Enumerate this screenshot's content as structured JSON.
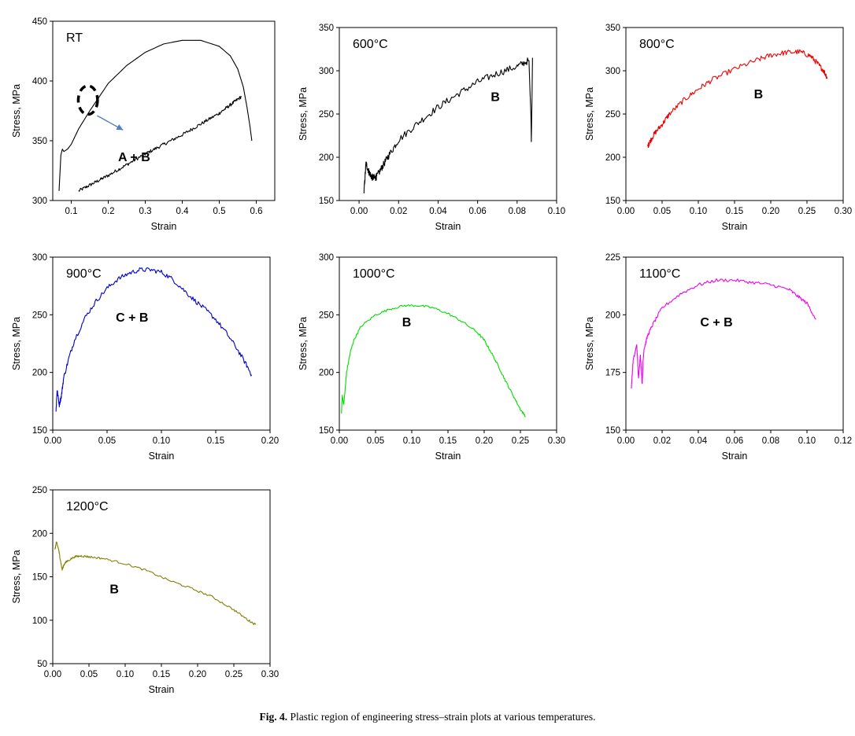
{
  "caption": {
    "label": "Fig. 4.",
    "text": "Plastic region of engineering stress–strain plots at various temperatures."
  },
  "chart_data": [
    {
      "id": "rt",
      "type": "line",
      "title": "RT",
      "xlabel": "Strain",
      "ylabel": "Stress, MPa",
      "xlim": [
        0.05,
        0.65
      ],
      "ylim": [
        300,
        450
      ],
      "xticks": [
        0.1,
        0.2,
        0.3,
        0.4,
        0.5,
        0.6
      ],
      "xtick_labels": [
        "0.1",
        "0.2",
        "0.3",
        "0.4",
        "0.5",
        "0.6"
      ],
      "yticks": [
        300,
        350,
        400,
        450
      ],
      "ytick_labels": [
        "300",
        "350",
        "400",
        "450"
      ],
      "annotations": [
        {
          "text": "A + B",
          "x": 0.27,
          "y": 333
        }
      ],
      "circle": {
        "x": 0.145,
        "y": 384,
        "rx": 0.026,
        "ry": 12
      },
      "arrow": {
        "from": [
          0.17,
          371
        ],
        "to": [
          0.24,
          359
        ]
      },
      "series": [
        {
          "color": "#000000",
          "noise": 0,
          "points": [
            [
              0.067,
              308
            ],
            [
              0.072,
              338
            ],
            [
              0.076,
              343
            ],
            [
              0.08,
              341
            ],
            [
              0.09,
              343
            ],
            [
              0.1,
              347
            ],
            [
              0.12,
              360
            ],
            [
              0.15,
              375
            ],
            [
              0.2,
              398
            ],
            [
              0.25,
              413
            ],
            [
              0.3,
              424
            ],
            [
              0.35,
              431
            ],
            [
              0.4,
              434
            ],
            [
              0.45,
              434
            ],
            [
              0.5,
              429
            ],
            [
              0.53,
              421
            ],
            [
              0.55,
              410
            ],
            [
              0.565,
              395
            ],
            [
              0.575,
              378
            ],
            [
              0.583,
              362
            ],
            [
              0.588,
              350
            ]
          ]
        },
        {
          "color": "#000000",
          "noise": 1.4,
          "points": [
            [
              0.12,
              308
            ],
            [
              0.2,
              321
            ],
            [
              0.3,
              339
            ],
            [
              0.4,
              355
            ],
            [
              0.5,
              373
            ],
            [
              0.56,
              387
            ]
          ]
        }
      ]
    },
    {
      "id": "t600",
      "type": "line",
      "title": "600°C",
      "xlabel": "Strain",
      "ylabel": "Stress, MPa",
      "xlim": [
        -0.01,
        0.1
      ],
      "ylim": [
        150,
        350
      ],
      "xticks": [
        0,
        0.02,
        0.04,
        0.06,
        0.08,
        0.1
      ],
      "xtick_labels": [
        "0.00",
        "0.02",
        "0.04",
        "0.06",
        "0.08",
        "0.10"
      ],
      "yticks": [
        150,
        200,
        250,
        300,
        350
      ],
      "ytick_labels": [
        "150",
        "200",
        "250",
        "300",
        "350"
      ],
      "annotations": [
        {
          "text": "B",
          "x": 0.069,
          "y": 265
        }
      ],
      "series": [
        {
          "color": "#000000",
          "noise": 4,
          "points": [
            [
              0.0025,
              160
            ],
            [
              0.0035,
              193
            ],
            [
              0.005,
              183
            ],
            [
              0.0065,
              177
            ],
            [
              0.008,
              176
            ],
            [
              0.009,
              178
            ],
            [
              0.012,
              190
            ],
            [
              0.015,
              202
            ],
            [
              0.02,
              220
            ],
            [
              0.03,
              240
            ],
            [
              0.04,
              258
            ],
            [
              0.05,
              273
            ],
            [
              0.06,
              287
            ],
            [
              0.07,
              297
            ],
            [
              0.08,
              305
            ],
            [
              0.086,
              312
            ]
          ]
        },
        {
          "color": "#000000",
          "noise": 0,
          "points": [
            [
              0.086,
              312
            ],
            [
              0.0865,
              278
            ],
            [
              0.087,
              248
            ],
            [
              0.0872,
              218
            ],
            [
              0.0875,
              262
            ],
            [
              0.0878,
              315
            ]
          ]
        }
      ]
    },
    {
      "id": "t800",
      "type": "line",
      "title": "800°C",
      "xlabel": "Strain",
      "ylabel": "Stress, MPa",
      "xlim": [
        0,
        0.3
      ],
      "ylim": [
        150,
        350
      ],
      "xticks": [
        0,
        0.05,
        0.1,
        0.15,
        0.2,
        0.25,
        0.3
      ],
      "xtick_labels": [
        "0.00",
        "0.05",
        "0.10",
        "0.15",
        "0.20",
        "0.25",
        "0.30"
      ],
      "yticks": [
        150,
        200,
        250,
        300,
        350
      ],
      "ytick_labels": [
        "150",
        "200",
        "250",
        "300",
        "350"
      ],
      "annotations": [
        {
          "text": "B",
          "x": 0.183,
          "y": 268
        }
      ],
      "series": [
        {
          "color": "#ee0000",
          "noise": 3,
          "points": [
            [
              0.03,
              212
            ],
            [
              0.033,
              218
            ],
            [
              0.04,
              228
            ],
            [
              0.05,
              238
            ],
            [
              0.06,
              250
            ],
            [
              0.08,
              266
            ],
            [
              0.1,
              279
            ],
            [
              0.12,
              290
            ],
            [
              0.15,
              302
            ],
            [
              0.18,
              312
            ],
            [
              0.2,
              318
            ],
            [
              0.22,
              321
            ],
            [
              0.24,
              322
            ],
            [
              0.255,
              317
            ],
            [
              0.265,
              308
            ],
            [
              0.273,
              300
            ],
            [
              0.278,
              292
            ]
          ]
        }
      ]
    },
    {
      "id": "t900",
      "type": "line",
      "title": "900°C",
      "xlabel": "Strain",
      "ylabel": "Stress, MPa",
      "xlim": [
        0,
        0.2
      ],
      "ylim": [
        150,
        300
      ],
      "xticks": [
        0,
        0.05,
        0.1,
        0.15,
        0.2
      ],
      "xtick_labels": [
        "0.00",
        "0.05",
        "0.10",
        "0.15",
        "0.20"
      ],
      "yticks": [
        150,
        200,
        250,
        300
      ],
      "ytick_labels": [
        "150",
        "200",
        "250",
        "300"
      ],
      "annotations": [
        {
          "text": "C + B",
          "x": 0.073,
          "y": 244
        }
      ],
      "series": [
        {
          "color": "#0000cc",
          "noise": 2,
          "points": [
            [
              0.003,
              166
            ],
            [
              0.004,
              185
            ],
            [
              0.006,
              172
            ],
            [
              0.008,
              180
            ],
            [
              0.01,
              195
            ],
            [
              0.015,
              213
            ],
            [
              0.02,
              228
            ],
            [
              0.03,
              248
            ],
            [
              0.04,
              262
            ],
            [
              0.05,
              273
            ],
            [
              0.06,
              281
            ],
            [
              0.07,
              286
            ],
            [
              0.08,
              289
            ],
            [
              0.09,
              289
            ],
            [
              0.1,
              287
            ],
            [
              0.11,
              281
            ],
            [
              0.12,
              272
            ],
            [
              0.13,
              263
            ],
            [
              0.14,
              255
            ],
            [
              0.15,
              246
            ],
            [
              0.16,
              234
            ],
            [
              0.17,
              220
            ],
            [
              0.178,
              207
            ],
            [
              0.183,
              198
            ]
          ]
        }
      ]
    },
    {
      "id": "t1000",
      "type": "line",
      "title": "1000°C",
      "xlabel": "Strain",
      "ylabel": "Stress, MPa",
      "xlim": [
        0,
        0.3
      ],
      "ylim": [
        150,
        300
      ],
      "xticks": [
        0,
        0.05,
        0.1,
        0.15,
        0.2,
        0.25,
        0.3
      ],
      "xtick_labels": [
        "0.00",
        "0.05",
        "0.10",
        "0.15",
        "0.20",
        "0.25",
        "0.30"
      ],
      "yticks": [
        150,
        200,
        250,
        300
      ],
      "ytick_labels": [
        "150",
        "200",
        "250",
        "300"
      ],
      "annotations": [
        {
          "text": "B",
          "x": 0.093,
          "y": 240
        }
      ],
      "series": [
        {
          "color": "#00dd00",
          "noise": 1,
          "points": [
            [
              0.003,
              165
            ],
            [
              0.004,
              180
            ],
            [
              0.006,
              172
            ],
            [
              0.008,
              185
            ],
            [
              0.01,
              200
            ],
            [
              0.015,
              217
            ],
            [
              0.02,
              228
            ],
            [
              0.03,
              240
            ],
            [
              0.05,
              250
            ],
            [
              0.07,
              255
            ],
            [
              0.09,
              258
            ],
            [
              0.11,
              258
            ],
            [
              0.13,
              256
            ],
            [
              0.15,
              251
            ],
            [
              0.17,
              244
            ],
            [
              0.19,
              235
            ],
            [
              0.2,
              228
            ],
            [
              0.21,
              217
            ],
            [
              0.22,
              205
            ],
            [
              0.23,
              192
            ],
            [
              0.24,
              180
            ],
            [
              0.25,
              168
            ],
            [
              0.257,
              162
            ]
          ]
        }
      ]
    },
    {
      "id": "t1100",
      "type": "line",
      "title": "1100°C",
      "xlabel": "Strain",
      "ylabel": "Stress, MPa",
      "xlim": [
        0,
        0.12
      ],
      "ylim": [
        150,
        225
      ],
      "xticks": [
        0,
        0.02,
        0.04,
        0.06,
        0.08,
        0.1,
        0.12
      ],
      "xtick_labels": [
        "0.00",
        "0.02",
        "0.04",
        "0.06",
        "0.08",
        "0.10",
        "0.12"
      ],
      "yticks": [
        150,
        175,
        200,
        225
      ],
      "ytick_labels": [
        "150",
        "175",
        "200",
        "225"
      ],
      "annotations": [
        {
          "text": "C + B",
          "x": 0.05,
          "y": 195
        }
      ],
      "series": [
        {
          "color": "#ee00ee",
          "noise": 0.7,
          "points": [
            [
              0.003,
              168
            ],
            [
              0.004,
              180
            ],
            [
              0.006,
              187
            ],
            [
              0.007,
              172
            ],
            [
              0.008,
              183
            ],
            [
              0.009,
              170
            ],
            [
              0.0095,
              180
            ],
            [
              0.01,
              185
            ],
            [
              0.012,
              191
            ],
            [
              0.015,
              196
            ],
            [
              0.02,
              203
            ],
            [
              0.03,
              209
            ],
            [
              0.04,
              213
            ],
            [
              0.05,
              215
            ],
            [
              0.06,
              215
            ],
            [
              0.07,
              214
            ],
            [
              0.08,
              213
            ],
            [
              0.09,
              211
            ],
            [
              0.095,
              208
            ],
            [
              0.1,
              205
            ],
            [
              0.105,
              198
            ]
          ]
        }
      ]
    },
    {
      "id": "t1200",
      "type": "line",
      "title": "1200°C",
      "xlabel": "Strain",
      "ylabel": "Stress, MPa",
      "xlim": [
        0,
        0.3
      ],
      "ylim": [
        50,
        250
      ],
      "xticks": [
        0,
        0.05,
        0.1,
        0.15,
        0.2,
        0.25,
        0.3
      ],
      "xtick_labels": [
        "0.00",
        "0.05",
        "0.10",
        "0.15",
        "0.20",
        "0.25",
        "0.30"
      ],
      "yticks": [
        50,
        100,
        150,
        200,
        250
      ],
      "ytick_labels": [
        "50",
        "100",
        "150",
        "200",
        "250"
      ],
      "annotations": [
        {
          "text": "B",
          "x": 0.085,
          "y": 131
        }
      ],
      "series": [
        {
          "color": "#808000",
          "noise": 1.2,
          "points": [
            [
              0.003,
              181
            ],
            [
              0.005,
              190
            ],
            [
              0.008,
              182
            ],
            [
              0.01,
              172
            ],
            [
              0.013,
              158
            ],
            [
              0.016,
              165
            ],
            [
              0.02,
              168
            ],
            [
              0.03,
              173
            ],
            [
              0.04,
              174
            ],
            [
              0.05,
              173
            ],
            [
              0.07,
              171
            ],
            [
              0.1,
              165
            ],
            [
              0.13,
              157
            ],
            [
              0.16,
              146
            ],
            [
              0.19,
              137
            ],
            [
              0.22,
              127
            ],
            [
              0.25,
              112
            ],
            [
              0.27,
              100
            ],
            [
              0.28,
              95
            ]
          ]
        }
      ]
    }
  ]
}
